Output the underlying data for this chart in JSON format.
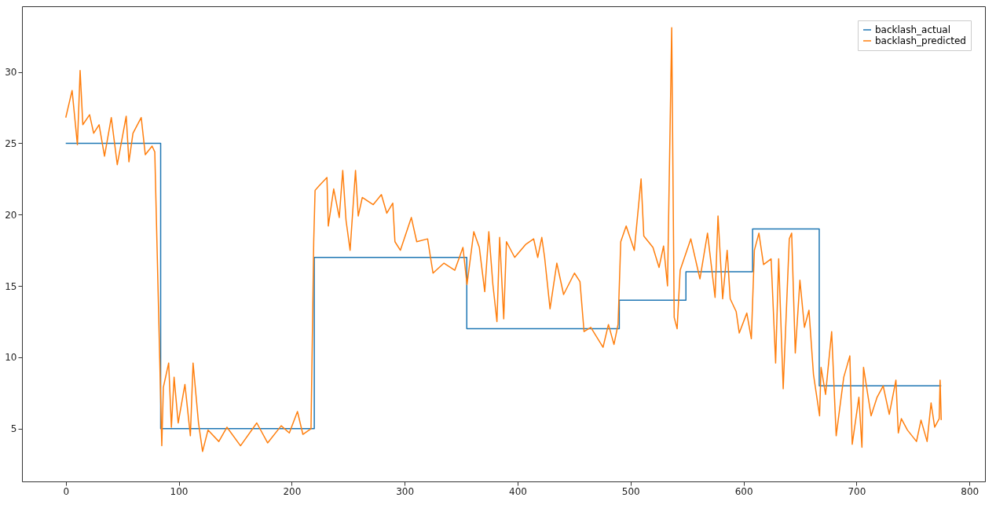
{
  "chart_data": {
    "type": "line",
    "xlim": [
      -38.75,
      813.75
    ],
    "xticks": [
      0,
      100,
      200,
      300,
      400,
      500,
      600,
      700,
      800
    ],
    "ylim": [
      1.3,
      34.6
    ],
    "yticks": [
      5,
      10,
      15,
      20,
      25,
      30
    ],
    "grid": false,
    "legend": "top right",
    "series": [
      {
        "name": "backlash_actual",
        "type": "step",
        "color": "#1f77b4",
        "x": [
          0,
          84,
          220,
          355,
          490,
          549,
          608,
          667,
          775
        ],
        "values": [
          25,
          5,
          17,
          12,
          14,
          16,
          19,
          8,
          8
        ]
      },
      {
        "name": "backlash_predicted",
        "color": "#ff7f0e",
        "x": [
          0,
          5.6,
          10.3,
          12.7,
          15.1,
          21.1,
          24.7,
          29.5,
          34.3,
          40.3,
          45.6,
          53.5,
          55.9,
          59.5,
          66.8,
          70.4,
          76.4,
          78.8,
          85,
          86.4,
          91.1,
          93.5,
          95.9,
          99.5,
          105.5,
          110.3,
          112.7,
          117.5,
          121.1,
          125.9,
          135.5,
          142.7,
          154.7,
          169.1,
          178.7,
          190.7,
          197.9,
          205.1,
          209.9,
          217.1,
          219.5,
          220.7,
          224,
          231.2,
          232.4,
          237.2,
          242.1,
          245.2,
          248.1,
          251.7,
          256.5,
          258.9,
          262.5,
          272.2,
          279.4,
          284.2,
          289.5,
          291.4,
          296.2,
          305.9,
          310.7,
          320.3,
          325.1,
          334.8,
          344.4,
          351.6,
          355.2,
          361.2,
          366.1,
          370.9,
          374.5,
          378.1,
          381.7,
          384.1,
          387.7,
          390.1,
          397.4,
          407,
          414.2,
          417.8,
          421.4,
          423.9,
          428.7,
          434.7,
          440.7,
          450.3,
          455.2,
          458.8,
          464.8,
          475.6,
          480.4,
          485.3,
          488.9,
          491.3,
          496.1,
          503.3,
          509.3,
          511.7,
          519.8,
          525.2,
          529.2,
          532.7,
          536.4,
          538.6,
          541.2,
          543.9,
          553.3,
          561.4,
          568.1,
          574.8,
          577.4,
          581.5,
          585.5,
          588.2,
          593.5,
          596.2,
          602.9,
          606.9,
          609.6,
          613.6,
          617.7,
          624.4,
          628.4,
          631.1,
          635.1,
          640.5,
          642.6,
          645.8,
          649.9,
          653.9,
          657.9,
          661.9,
          667.3,
          668.6,
          672.6,
          678,
          682,
          688.7,
          694.1,
          696.2,
          702.1,
          704.8,
          706.2,
          712.9,
          718.2,
          723.6,
          729,
          734.9,
          737,
          739.7,
          745.1,
          753.1,
          757.1,
          762.5,
          766,
          769.2,
          773.2,
          774,
          775
        ],
        "values": [
          26.8,
          28.7,
          24.9,
          30.1,
          26.3,
          27,
          25.7,
          26.3,
          24.1,
          26.8,
          23.5,
          26.9,
          23.7,
          25.7,
          26.8,
          24.2,
          24.8,
          24.4,
          3.8,
          7.9,
          9.6,
          5.1,
          8.6,
          5.4,
          8.1,
          4.5,
          9.6,
          5.4,
          3.4,
          4.9,
          4.1,
          5.1,
          3.8,
          5.4,
          4,
          5.2,
          4.7,
          6.2,
          4.6,
          5,
          18.1,
          21.7,
          22,
          22.6,
          19.2,
          21.8,
          19.8,
          23.1,
          19.6,
          17.5,
          23.1,
          19.9,
          21.2,
          20.7,
          21.4,
          20.1,
          20.8,
          18.1,
          17.5,
          19.8,
          18.1,
          18.3,
          15.9,
          16.6,
          16.1,
          17.7,
          15.1,
          18.8,
          17.7,
          14.6,
          18.8,
          15.1,
          12.5,
          18.4,
          12.7,
          18.1,
          17,
          17.9,
          18.3,
          17,
          18.4,
          17,
          13.4,
          16.6,
          14.4,
          15.9,
          15.3,
          11.8,
          12.1,
          10.7,
          12.3,
          10.9,
          12.3,
          18.1,
          19.2,
          17.5,
          22.5,
          18.5,
          17.7,
          16.3,
          17.8,
          15,
          33.1,
          12.8,
          12,
          16.1,
          18.3,
          15.5,
          18.7,
          14.2,
          19.9,
          14.1,
          17.5,
          14.1,
          13.2,
          11.7,
          13.1,
          11.3,
          17.5,
          18.7,
          16.5,
          16.9,
          9.6,
          16.9,
          7.8,
          18.3,
          18.7,
          10.3,
          15.4,
          12.1,
          13.3,
          8.8,
          5.9,
          9.3,
          7.4,
          11.8,
          4.5,
          8.6,
          10.1,
          3.9,
          7.2,
          3.7,
          9.3,
          5.9,
          7.2,
          8,
          6,
          8.4,
          4.7,
          5.7,
          4.9,
          4.1,
          5.6,
          4.1,
          6.8,
          5.1,
          5.7,
          8.4,
          5.6
        ]
      }
    ]
  }
}
